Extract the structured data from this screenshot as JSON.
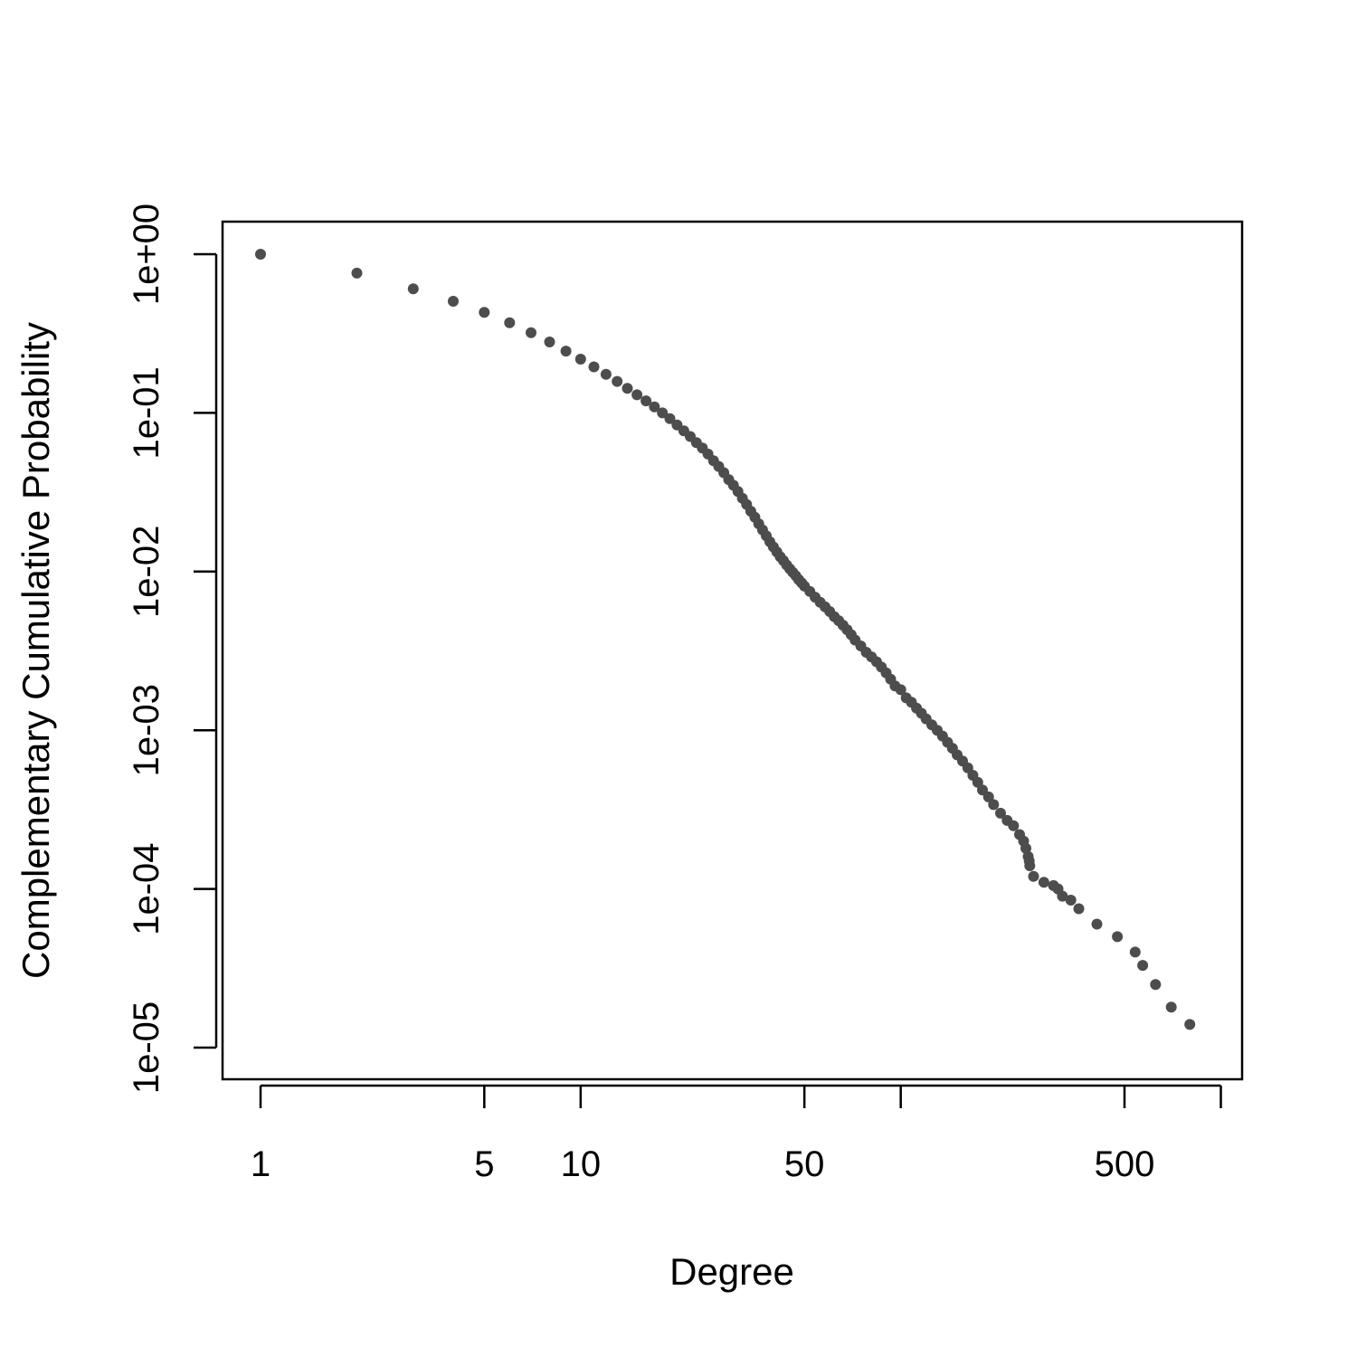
{
  "chart_data": {
    "type": "scatter",
    "title": "",
    "xlabel": "Degree",
    "ylabel": "Complementary Cumulative Probability",
    "x_scale": "log",
    "y_scale": "log",
    "xlim": [
      0.9,
      1000
    ],
    "ylim": [
      7e-06,
      1.5
    ],
    "grid": false,
    "legend": "none",
    "x_ticks": [
      1,
      5,
      10,
      50,
      100,
      500,
      1000
    ],
    "x_tick_labels": [
      "1",
      "5",
      "10",
      "50",
      "",
      "500",
      ""
    ],
    "y_ticks": [
      1,
      0.1,
      0.01,
      0.001,
      0.0001,
      1e-05
    ],
    "y_tick_labels": [
      "1e+00",
      "1e-01",
      "1e-02",
      "1e-03",
      "1e-04",
      "1e-05"
    ],
    "point_color": "#4d4d4d",
    "series": [
      {
        "points": [
          [
            1,
            1.0
          ],
          [
            2,
            0.76
          ],
          [
            3,
            0.605
          ],
          [
            4,
            0.505
          ],
          [
            5,
            0.43
          ],
          [
            6,
            0.37
          ],
          [
            7,
            0.32
          ],
          [
            8,
            0.28
          ],
          [
            9,
            0.245
          ],
          [
            10,
            0.218
          ],
          [
            11,
            0.195
          ],
          [
            12,
            0.175
          ],
          [
            13,
            0.158
          ],
          [
            14,
            0.143
          ],
          [
            15,
            0.13
          ],
          [
            16,
            0.119
          ],
          [
            17,
            0.109
          ],
          [
            18,
            0.1
          ],
          [
            19,
            0.092
          ],
          [
            20,
            0.084
          ],
          [
            21,
            0.077
          ],
          [
            22,
            0.071
          ],
          [
            23,
            0.065
          ],
          [
            24,
            0.06
          ],
          [
            25,
            0.055
          ],
          [
            26,
            0.05
          ],
          [
            27,
            0.046
          ],
          [
            28,
            0.042
          ],
          [
            29,
            0.038
          ],
          [
            30,
            0.035
          ],
          [
            31,
            0.032
          ],
          [
            32,
            0.029
          ],
          [
            33,
            0.0265
          ],
          [
            34,
            0.024
          ],
          [
            35,
            0.022
          ],
          [
            36,
            0.02
          ],
          [
            37,
            0.0183
          ],
          [
            38,
            0.0168
          ],
          [
            39,
            0.0154
          ],
          [
            40,
            0.0143
          ],
          [
            41,
            0.0133
          ],
          [
            42,
            0.0124
          ],
          [
            43,
            0.0117
          ],
          [
            44,
            0.011
          ],
          [
            45,
            0.0104
          ],
          [
            46,
            0.0099
          ],
          [
            47,
            0.0094
          ],
          [
            48,
            0.0089
          ],
          [
            49,
            0.0085
          ],
          [
            50,
            0.0081
          ],
          [
            52,
            0.0075
          ],
          [
            54,
            0.0069
          ],
          [
            56,
            0.0064
          ],
          [
            58,
            0.006
          ],
          [
            60,
            0.0056
          ],
          [
            62,
            0.0052
          ],
          [
            64,
            0.0049
          ],
          [
            66,
            0.0046
          ],
          [
            68,
            0.0043
          ],
          [
            70,
            0.004
          ],
          [
            72,
            0.0037
          ],
          [
            75,
            0.0034
          ],
          [
            78,
            0.0031
          ],
          [
            81,
            0.0029
          ],
          [
            84,
            0.0027
          ],
          [
            87,
            0.0025
          ],
          [
            90,
            0.0023
          ],
          [
            93,
            0.0021
          ],
          [
            96,
            0.0019
          ],
          [
            100,
            0.0018
          ],
          [
            104,
            0.0016
          ],
          [
            108,
            0.0015
          ],
          [
            112,
            0.00138
          ],
          [
            116,
            0.00128
          ],
          [
            120,
            0.00118
          ],
          [
            125,
            0.00108
          ],
          [
            130,
            0.001
          ],
          [
            135,
            0.00092
          ],
          [
            140,
            0.00084
          ],
          [
            145,
            0.00077
          ],
          [
            150,
            0.0007
          ],
          [
            156,
            0.00064
          ],
          [
            162,
            0.00058
          ],
          [
            168,
            0.00052
          ],
          [
            174,
            0.00047
          ],
          [
            180,
            0.00042
          ],
          [
            188,
            0.00038
          ],
          [
            195,
            0.00034
          ],
          [
            205,
            0.0003
          ],
          [
            215,
            0.00027
          ],
          [
            225,
            0.00025
          ],
          [
            235,
            0.00022
          ],
          [
            242,
            0.0002
          ],
          [
            246,
            0.00018
          ],
          [
            250,
            0.00016
          ],
          [
            252,
            0.00015
          ],
          [
            253,
            0.00014
          ],
          [
            260,
            0.00012
          ],
          [
            280,
            0.00011
          ],
          [
            300,
            0.000105
          ],
          [
            310,
            0.0001
          ],
          [
            320,
            9e-05
          ],
          [
            340,
            8.5e-05
          ],
          [
            360,
            7.5e-05
          ],
          [
            410,
            6e-05
          ],
          [
            475,
            5e-05
          ],
          [
            540,
            4e-05
          ],
          [
            570,
            3.3e-05
          ],
          [
            625,
            2.5e-05
          ],
          [
            700,
            1.8e-05
          ],
          [
            800,
            1.4e-05
          ]
        ]
      }
    ]
  }
}
